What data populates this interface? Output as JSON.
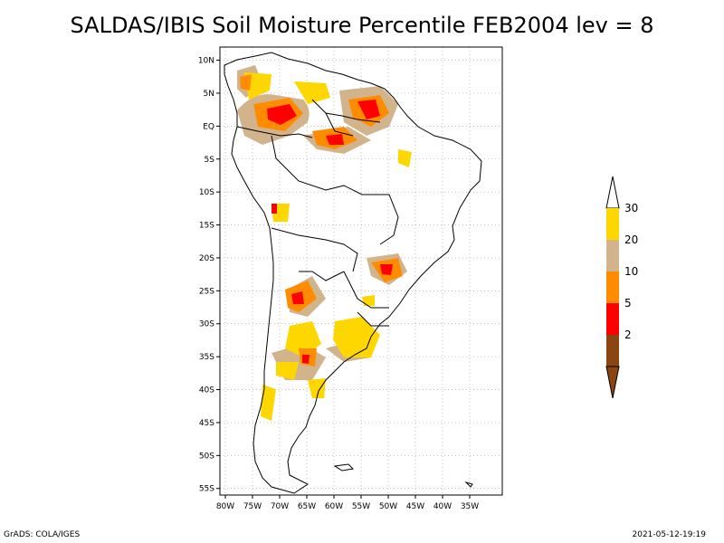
{
  "title": "SALDAS/IBIS Soil Moisture Percentile FEB2004 lev = 8",
  "map": {
    "lon_range": [
      -81,
      -29
    ],
    "lat_range": [
      -56,
      12
    ],
    "lon_ticks": [
      {
        "value": -80,
        "label": "80W"
      },
      {
        "value": -75,
        "label": "75W"
      },
      {
        "value": -70,
        "label": "70W"
      },
      {
        "value": -65,
        "label": "65W"
      },
      {
        "value": -60,
        "label": "60W"
      },
      {
        "value": -55,
        "label": "55W"
      },
      {
        "value": -50,
        "label": "50W"
      },
      {
        "value": -45,
        "label": "45W"
      },
      {
        "value": -40,
        "label": "40W"
      },
      {
        "value": -35,
        "label": "35W"
      }
    ],
    "lat_ticks": [
      {
        "value": 10,
        "label": "10N"
      },
      {
        "value": 5,
        "label": "5N"
      },
      {
        "value": 0,
        "label": "EQ"
      },
      {
        "value": -5,
        "label": "5S"
      },
      {
        "value": -10,
        "label": "10S"
      },
      {
        "value": -15,
        "label": "15S"
      },
      {
        "value": -20,
        "label": "20S"
      },
      {
        "value": -25,
        "label": "25S"
      },
      {
        "value": -30,
        "label": "30S"
      },
      {
        "value": -35,
        "label": "35S"
      },
      {
        "value": -40,
        "label": "40S"
      },
      {
        "value": -45,
        "label": "45S"
      },
      {
        "value": -50,
        "label": "50S"
      },
      {
        "value": -55,
        "label": "55S"
      }
    ],
    "gridlines": true
  },
  "legend": {
    "bins": [
      {
        "color": "#ffd700",
        "label": "30"
      },
      {
        "color": "#d2b48c",
        "label": "20"
      },
      {
        "color": "#ff8c00",
        "label": "10"
      },
      {
        "color": "#ff0000",
        "label": "5"
      },
      {
        "color": "#8b4513",
        "label": "2"
      }
    ],
    "top_arrow_color": "#ffffff",
    "bottom_arrow_color": "#8b4513"
  },
  "footer": {
    "left": "GrADS: COLA/IGES",
    "right": "2021-05-12-19:19"
  }
}
